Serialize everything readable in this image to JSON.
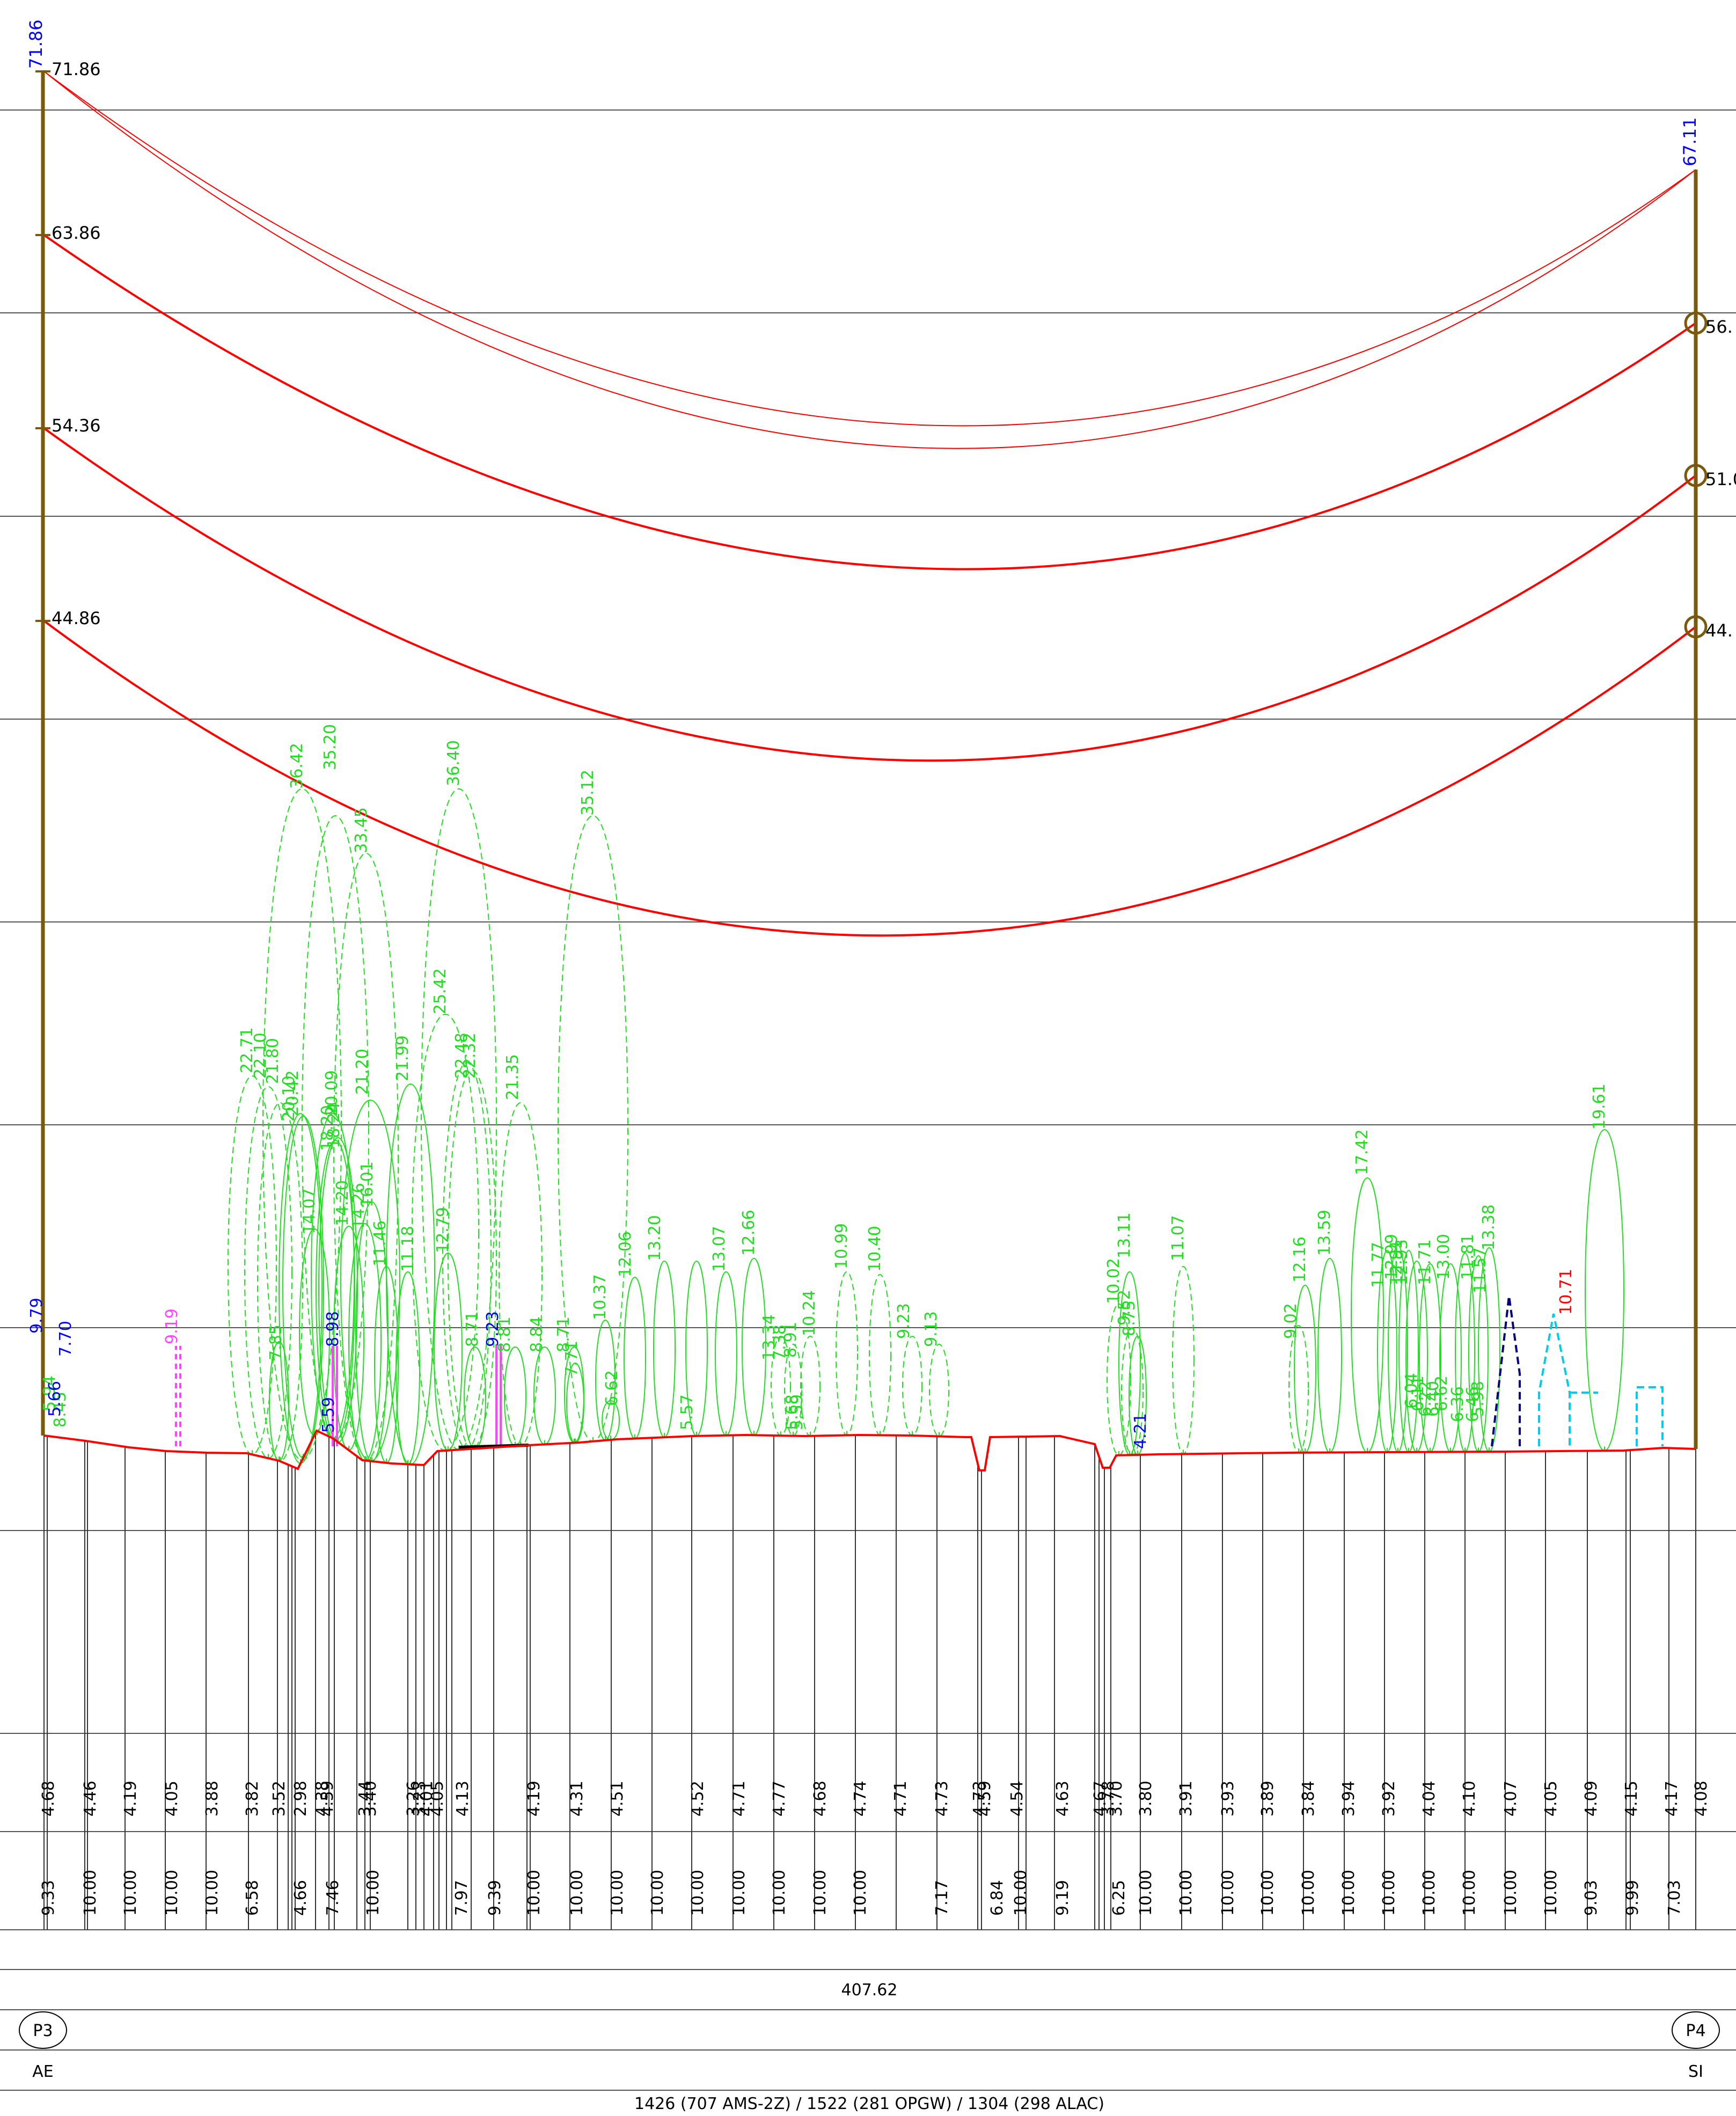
{
  "towers": {
    "left": {
      "id": "P3",
      "code": "AE",
      "top_elevation": "71.86"
    },
    "right": {
      "id": "P4",
      "code": "SI",
      "top_elevation": "67.11"
    }
  },
  "left_attachments": [
    "71.86",
    "63.86",
    "54.36",
    "44.86"
  ],
  "right_attachments": [
    "56.",
    "51.0",
    "44."
  ],
  "span_length": "407.62",
  "conductor_summary": "1426 (707 AMS-2Z) / 1522 (281 OPGW) / 1304 (298 ALAC)",
  "station_row_1": [
    "4.68",
    "4.46",
    "4.19",
    "4.05",
    "3.88",
    "3.82",
    "3.52",
    "2.98",
    "4.38",
    "4.59",
    "3.44",
    "3.40",
    "3.26",
    "3.23",
    "4.01",
    "4.05",
    "4.13",
    "4.19",
    "4.31",
    "4.51",
    "4.52",
    "4.71",
    "4.77",
    "4.68",
    "4.74",
    "4.71",
    "4.73",
    "4.73",
    "4.59",
    "4.54",
    "4.63",
    "4.67",
    "3.78",
    "3.70",
    "3.80",
    "3.91",
    "3.93",
    "3.89",
    "3.84",
    "3.94",
    "3.92",
    "4.04",
    "4.10",
    "4.07",
    "4.05",
    "4.09",
    "4.15",
    "4.17",
    "4.08"
  ],
  "station_row_2": [
    "9.33",
    "10.00",
    "10.00",
    "10.00",
    "10.00",
    "6.58",
    "4.66",
    "7.46",
    "10.00",
    "7.97",
    "9.39",
    "10.00",
    "10.00",
    "10.00",
    "10.00",
    "10.00",
    "10.00",
    "10.00",
    "10.00",
    "10.00",
    "7.17",
    "6.84",
    "10.00",
    "9.19",
    "6.25",
    "10.00",
    "10.00",
    "10.00",
    "10.00",
    "10.00",
    "10.00",
    "10.00",
    "10.00",
    "10.00",
    "10.00",
    "10.00",
    "9.03",
    "9.99",
    "7.03"
  ],
  "tree_heights": [
    "36.42",
    "35.20",
    "33.45",
    "36.40",
    "35.12",
    "25.42",
    "22.71",
    "22.10",
    "21.80",
    "20.42",
    "20.10",
    "20.09",
    "18.20",
    "18.24",
    "21.20",
    "21.99",
    "22.48",
    "22.32",
    "21.35",
    "14.07",
    "14.20",
    "14.26",
    "16.01",
    "11.46",
    "11.18",
    "12.79",
    "8.71",
    "8.81",
    "8.84",
    "8.71",
    "7.71",
    "7.85",
    "10.37",
    "6.62",
    "12.06",
    "13.20",
    "5.57",
    "13.07",
    "12.66",
    "13.34",
    "7.38",
    "8.91",
    "5.68",
    "5.59",
    "10.24",
    "10.99",
    "10.40",
    "9.23",
    "9.13",
    "10.02",
    "9.52",
    "8.75",
    "13.11",
    "11.07",
    "9.02",
    "12.16",
    "13.59",
    "17.42",
    "11.77",
    "12.99",
    "12.91",
    "12.93",
    "11.71",
    "13.00",
    "11.81",
    "11.57",
    "13.38",
    "6.04",
    "6.11",
    "6.22",
    "6.40",
    "6.62",
    "6.36",
    "5.98",
    "6.46",
    "19.61",
    "5.94",
    "8.45"
  ],
  "obstacle_heights_blue": [
    "9.79",
    "5.66",
    "7.70",
    "9.19",
    "8.98",
    "5.59",
    "9.23",
    "4.21"
  ],
  "obstacle_red": "10.71",
  "colors": {
    "tower": "#7a5a0a",
    "conductor": "#ff0000",
    "tree": "#22dd22",
    "label_blue": "#0000ff",
    "grid": "#555555",
    "cyan_obstacle": "#00ccee",
    "navy_obstacle": "#000080",
    "magenta": "#ff44ff"
  }
}
